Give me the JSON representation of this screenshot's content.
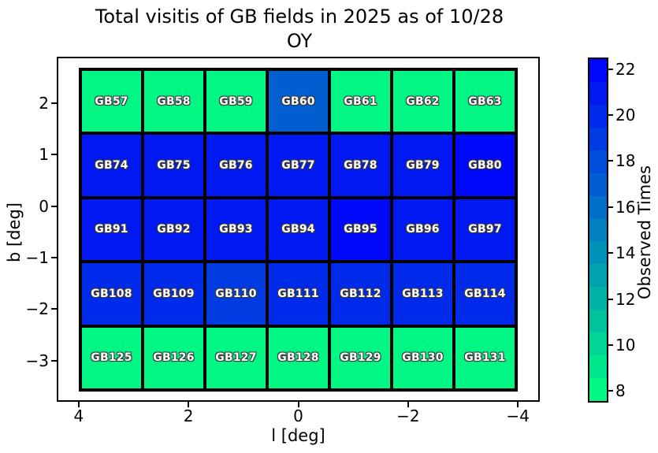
{
  "title": {
    "line1": "Total visitis of GB fields in 2025 as of 10/28",
    "line2": "OY"
  },
  "axes": {
    "xlabel": "l [deg]",
    "ylabel": "b [deg]",
    "x_ticks": [
      4,
      2,
      0,
      -2,
      -4
    ],
    "y_ticks": [
      2,
      1,
      0,
      -1,
      -2,
      -3
    ],
    "xlim": [
      4.4,
      -4.4
    ],
    "ylim": [
      2.9,
      -3.8
    ]
  },
  "colorbar": {
    "label": "Observed Times",
    "ticks": [
      8,
      10,
      12,
      14,
      16,
      18,
      20,
      22
    ],
    "vmin": 7.5,
    "vmax": 22.5,
    "color_min": "#00FF80",
    "color_max": "#0000FF"
  },
  "colors": {
    "cell_text": "#ffffff",
    "cell_text_outline": "#3c3c3c",
    "grid_line": "#000000",
    "colormap": "winter_r"
  },
  "chart_data": {
    "type": "heatmap",
    "title": "Total visitis of GB fields in 2025 as of 10/28 OY",
    "xlabel": "l [deg]",
    "ylabel": "b [deg]",
    "value_label": "Observed Times",
    "value_range": [
      8,
      22
    ],
    "rows": [
      {
        "b": 2.2,
        "cells": [
          {
            "label": "GB57",
            "value": 8
          },
          {
            "label": "GB58",
            "value": 8
          },
          {
            "label": "GB59",
            "value": 8
          },
          {
            "label": "GB60",
            "value": 17
          },
          {
            "label": "GB61",
            "value": 8
          },
          {
            "label": "GB62",
            "value": 8
          },
          {
            "label": "GB63",
            "value": 8
          }
        ]
      },
      {
        "b": 0.9,
        "cells": [
          {
            "label": "GB74",
            "value": 21
          },
          {
            "label": "GB75",
            "value": 21
          },
          {
            "label": "GB76",
            "value": 21
          },
          {
            "label": "GB77",
            "value": 21
          },
          {
            "label": "GB78",
            "value": 21
          },
          {
            "label": "GB79",
            "value": 21
          },
          {
            "label": "GB80",
            "value": 22
          }
        ]
      },
      {
        "b": -0.4,
        "cells": [
          {
            "label": "GB91",
            "value": 21
          },
          {
            "label": "GB92",
            "value": 21
          },
          {
            "label": "GB93",
            "value": 21
          },
          {
            "label": "GB94",
            "value": 21
          },
          {
            "label": "GB95",
            "value": 22
          },
          {
            "label": "GB96",
            "value": 21
          },
          {
            "label": "GB97",
            "value": 21
          }
        ]
      },
      {
        "b": -1.6,
        "cells": [
          {
            "label": "GB108",
            "value": 20
          },
          {
            "label": "GB109",
            "value": 20
          },
          {
            "label": "GB110",
            "value": 19
          },
          {
            "label": "GB111",
            "value": 20
          },
          {
            "label": "GB112",
            "value": 20
          },
          {
            "label": "GB113",
            "value": 20
          },
          {
            "label": "GB114",
            "value": 20
          }
        ]
      },
      {
        "b": -2.9,
        "cells": [
          {
            "label": "GB125",
            "value": 8
          },
          {
            "label": "GB126",
            "value": 8
          },
          {
            "label": "GB127",
            "value": 8
          },
          {
            "label": "GB128",
            "value": 8
          },
          {
            "label": "GB129",
            "value": 8
          },
          {
            "label": "GB130",
            "value": 8
          },
          {
            "label": "GB131",
            "value": 8
          }
        ]
      }
    ]
  }
}
